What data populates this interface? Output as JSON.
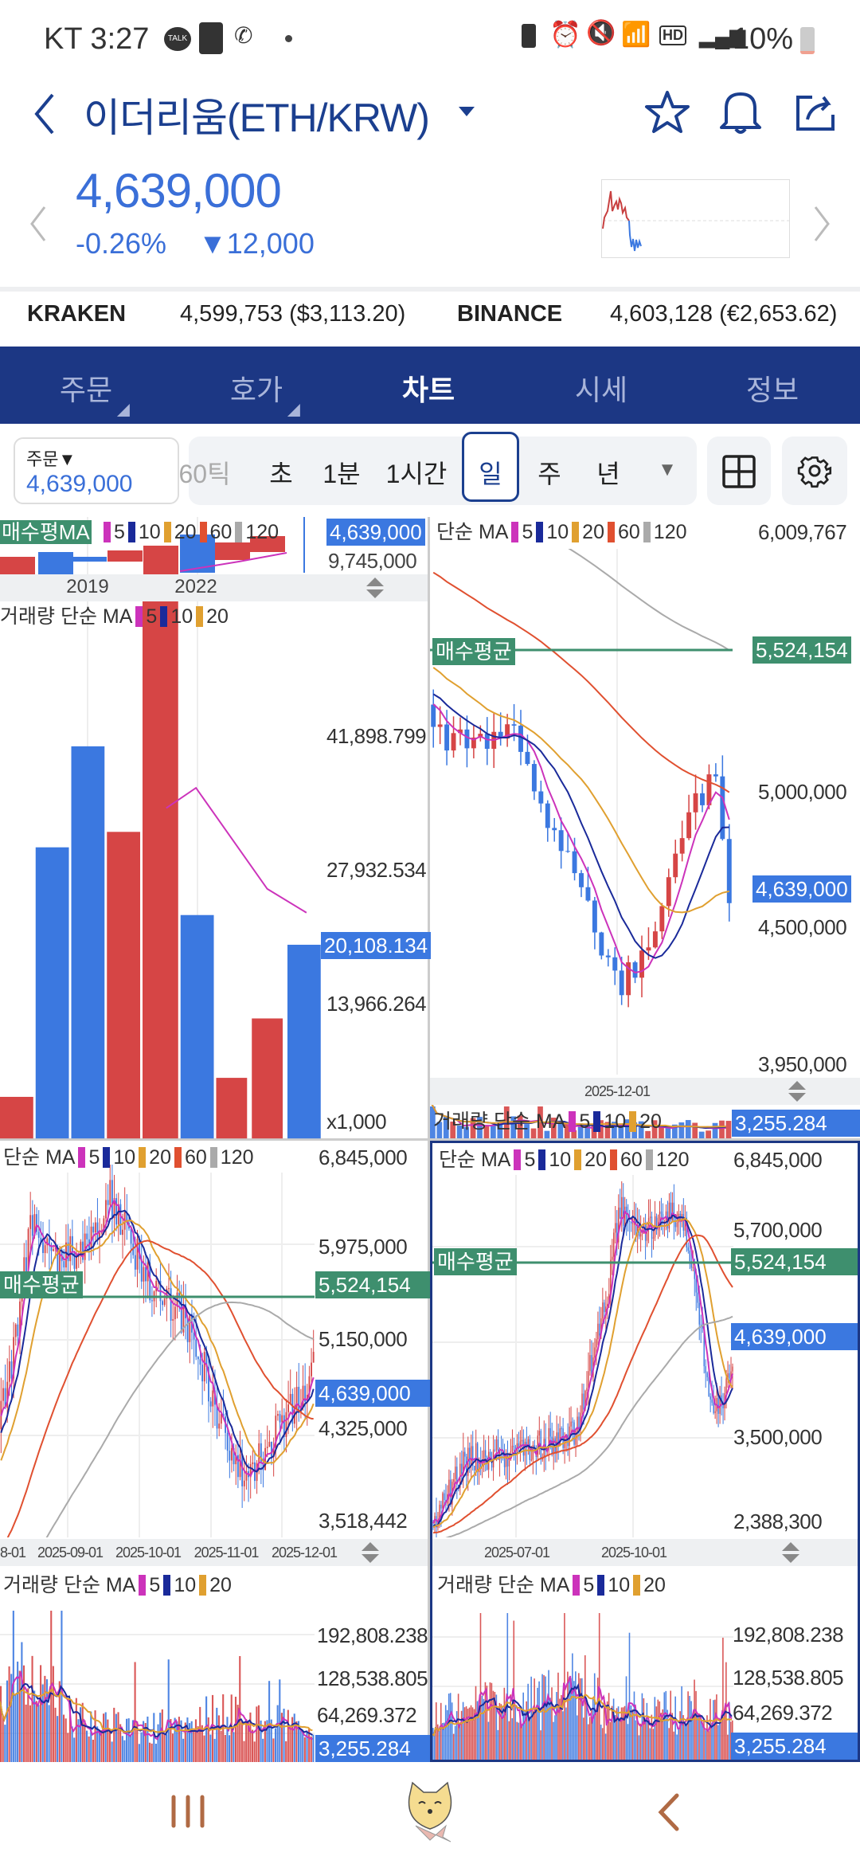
{
  "status_bar": {
    "carrier_time": "KT 3:27",
    "battery": "10%",
    "icons": [
      "kakaotalk-icon",
      "in-app-icon",
      "whowho-icon",
      "dot-icon",
      "battery-saver-icon",
      "alarm-icon",
      "mute-icon",
      "wifi-icon",
      "hd-voice-icon",
      "signal-icon",
      "battery-icon"
    ]
  },
  "header": {
    "title": "이더리움(ETH/KRW)",
    "back_icon": "chevron-left-icon",
    "icons": [
      "star-icon",
      "bell-icon",
      "share-icon"
    ]
  },
  "quote": {
    "price": "4,639,000",
    "change_pct": "-0.26%",
    "change_arrow": "▼",
    "change_abs": "12,000",
    "color": "#3a6fd8"
  },
  "exchanges": [
    {
      "name": "KRAKEN",
      "value": "4,599,753 ($3,113.20)"
    },
    {
      "name": "BINANCE",
      "value": "4,603,128 (€2,653.62)"
    }
  ],
  "tabs": [
    {
      "label": "주문"
    },
    {
      "label": "호가"
    },
    {
      "label": "차트",
      "active": true
    },
    {
      "label": "시세"
    },
    {
      "label": "정보"
    }
  ],
  "toolbar": {
    "order_label": "주문▼",
    "order_value": "4,639,000",
    "intervals": [
      "60틱",
      "초",
      "1분",
      "1시간",
      "일",
      "주",
      "년"
    ],
    "selected_interval": "일",
    "more": "▼"
  },
  "colors": {
    "up": "#d64545",
    "down": "#3b78e0",
    "ma5": "#cc33bb",
    "ma10": "#1a2a9a",
    "ma20": "#e0a030",
    "ma60": "#e05030",
    "ma120": "#aaaaaa",
    "avg_line": "#3e8f6e",
    "tab_bar": "#1c3784"
  },
  "legend": {
    "price_prefix": "단순 MA",
    "volume_prefix": "거래량 단순 MA",
    "p5": "5",
    "p10": "10",
    "p20": "20",
    "p60": "60",
    "p120": "120",
    "avg_label": "매수평균",
    "avg_label_overlap": "매수평MA"
  },
  "panes": {
    "tl": {
      "price_tag": "4,639,000",
      "overlap_labels": "9,745,000",
      "dates": [
        "2019",
        "2022"
      ],
      "vol_labels": [
        "41,898.799",
        "27,932.534",
        "13,966.264",
        "x1,000"
      ],
      "vol_tag": "20,108.134"
    },
    "tr": {
      "labels": [
        "6,009,767",
        "5,000,000",
        "4,500,000",
        "3,950,000"
      ],
      "avg_tag": "5,524,154",
      "price_tag": "4,639,000",
      "dates": [
        "2025-12-01"
      ],
      "vol_tag": "3,255.284"
    },
    "bl": {
      "labels": [
        "6,845,000",
        "5,975,000",
        "5,150,000",
        "4,325,000",
        "3,518,442"
      ],
      "avg_tag": "5,524,154",
      "price_tag": "4,639,000",
      "dates": [
        "8-01",
        "2025-09-01",
        "2025-10-01",
        "2025-11-01",
        "2025-12-01"
      ],
      "vol_labels": [
        "192,808.238",
        "128,538.805",
        "64,269.372"
      ],
      "vol_tag": "3,255.284"
    },
    "br": {
      "labels": [
        "6,845,000",
        "5,700,000",
        "3,500,000",
        "2,388,300"
      ],
      "avg_tag": "5,524,154",
      "price_tag": "4,639,000",
      "dates": [
        "2025-07-01",
        "2025-10-01"
      ],
      "vol_labels": [
        "192,808.238",
        "128,538.805",
        "64,269.372"
      ],
      "vol_tag": "3,255.284"
    }
  },
  "nav": {
    "icons": [
      "recent-apps-icon",
      "home-shiba-icon",
      "back-icon"
    ]
  }
}
